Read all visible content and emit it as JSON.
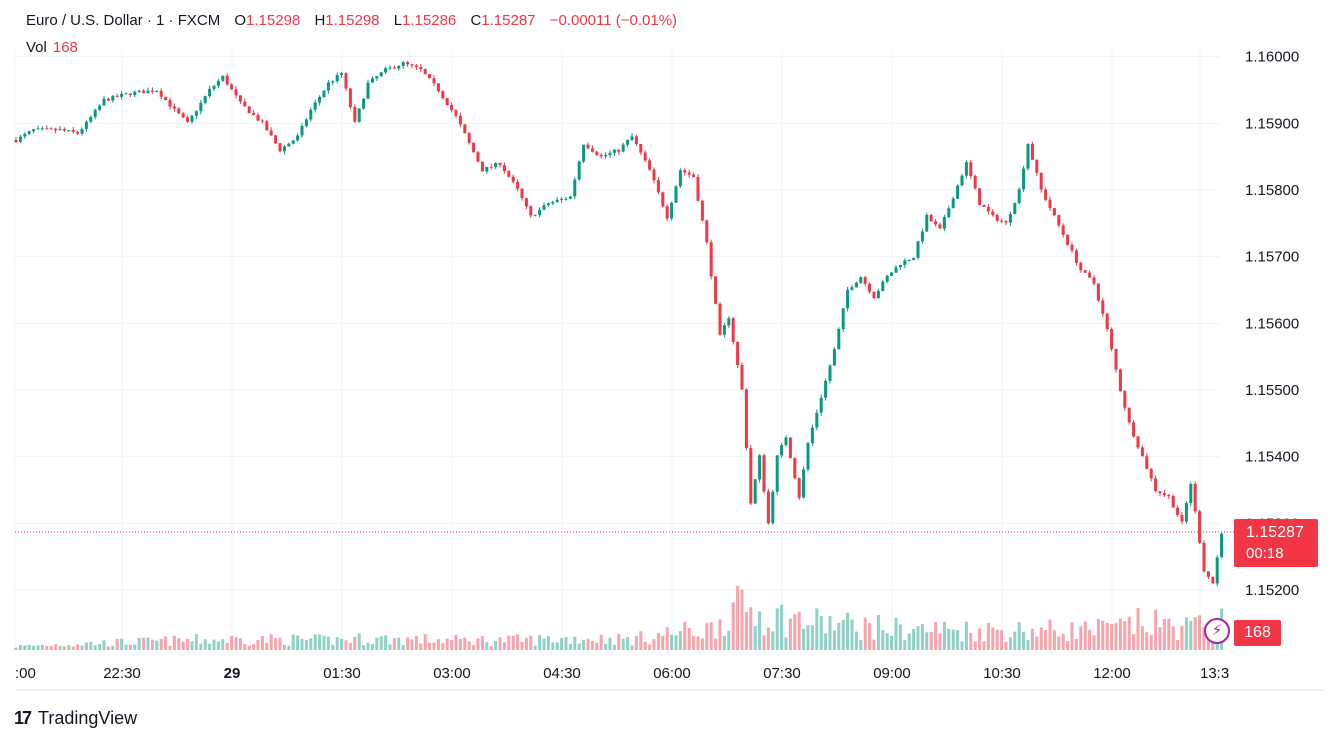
{
  "legend": {
    "symbol": "Euro / U.S. Dollar · 1 · FXCM",
    "o_label": "O",
    "o_value": "1.15298",
    "h_label": "H",
    "h_value": "1.15298",
    "l_label": "L",
    "l_value": "1.15286",
    "c_label": "C",
    "c_value": "1.15287",
    "change": "−0.00011 (−0.01%)"
  },
  "volume": {
    "label": "Vol",
    "value": "168"
  },
  "last_price": {
    "price": "1.15287",
    "countdown": "00:18"
  },
  "brand": {
    "name": "TradingView"
  },
  "colors": {
    "up": "#089981",
    "down": "#f23645",
    "grid": "#f0f3fa",
    "last_line": "#f23645"
  },
  "icons": {
    "bolt": "lightning-bolt-icon",
    "logo": "tradingview-logo-icon"
  },
  "chart_data": {
    "type": "candlestick",
    "title": "Euro / U.S. Dollar · 1 · FXCM",
    "y_ticks": [
      "1.16000",
      "1.15900",
      "1.15800",
      "1.15700",
      "1.15600",
      "1.15500",
      "1.15400",
      "1.15300",
      "1.15200"
    ],
    "x_ticks": [
      ":00",
      "22:30",
      "29",
      "01:30",
      "03:00",
      "04:30",
      "06:00",
      "07:30",
      "09:00",
      "10:30",
      "12:00",
      "13:3"
    ],
    "ylim": [
      1.15185,
      1.1601
    ],
    "last_close": 1.15287,
    "price_path": [
      [
        0,
        1.15875
      ],
      [
        4,
        1.1589
      ],
      [
        10,
        1.1589
      ],
      [
        14,
        1.15885
      ],
      [
        16,
        1.159
      ],
      [
        20,
        1.15935
      ],
      [
        26,
        1.15945
      ],
      [
        32,
        1.1595
      ],
      [
        36,
        1.1592
      ],
      [
        39,
        1.159
      ],
      [
        44,
        1.1595
      ],
      [
        47,
        1.1597
      ],
      [
        51,
        1.1593
      ],
      [
        56,
        1.159
      ],
      [
        60,
        1.1586
      ],
      [
        64,
        1.1588
      ],
      [
        67,
        1.1592
      ],
      [
        71,
        1.1596
      ],
      [
        74,
        1.15975
      ],
      [
        77,
        1.159
      ],
      [
        80,
        1.1596
      ],
      [
        84,
        1.1598
      ],
      [
        88,
        1.1599
      ],
      [
        92,
        1.1598
      ],
      [
        96,
        1.1595
      ],
      [
        100,
        1.1591
      ],
      [
        103,
        1.1587
      ],
      [
        106,
        1.1583
      ],
      [
        110,
        1.1584
      ],
      [
        114,
        1.158
      ],
      [
        117,
        1.1576
      ],
      [
        121,
        1.1578
      ],
      [
        126,
        1.1579
      ],
      [
        129,
        1.1587
      ],
      [
        133,
        1.1585
      ],
      [
        137,
        1.1586
      ],
      [
        140,
        1.1588
      ],
      [
        144,
        1.1583
      ],
      [
        148,
        1.1576
      ],
      [
        151,
        1.1583
      ],
      [
        154,
        1.1582
      ],
      [
        157,
        1.1572
      ],
      [
        160,
        1.1558
      ],
      [
        162,
        1.1561
      ],
      [
        165,
        1.155
      ],
      [
        167,
        1.1533
      ],
      [
        169,
        1.154
      ],
      [
        171,
        1.153
      ],
      [
        173,
        1.154
      ],
      [
        175,
        1.1543
      ],
      [
        178,
        1.1534
      ],
      [
        180,
        1.1542
      ],
      [
        183,
        1.1549
      ],
      [
        186,
        1.1556
      ],
      [
        189,
        1.1565
      ],
      [
        192,
        1.1567
      ],
      [
        195,
        1.1564
      ],
      [
        198,
        1.1567
      ],
      [
        201,
        1.1569
      ],
      [
        204,
        1.157
      ],
      [
        207,
        1.1576
      ],
      [
        210,
        1.1574
      ],
      [
        213,
        1.1579
      ],
      [
        216,
        1.1584
      ],
      [
        219,
        1.1578
      ],
      [
        222,
        1.1576
      ],
      [
        225,
        1.1575
      ],
      [
        228,
        1.158
      ],
      [
        230,
        1.1587
      ],
      [
        233,
        1.158
      ],
      [
        236,
        1.1576
      ],
      [
        239,
        1.1572
      ],
      [
        242,
        1.1568
      ],
      [
        245,
        1.1566
      ],
      [
        248,
        1.1559
      ],
      [
        251,
        1.155
      ],
      [
        253,
        1.1545
      ],
      [
        256,
        1.154
      ],
      [
        259,
        1.1535
      ],
      [
        262,
        1.1534
      ],
      [
        265,
        1.153
      ],
      [
        267,
        1.1536
      ],
      [
        270,
        1.1523
      ],
      [
        272,
        1.1521
      ],
      [
        274,
        1.15287
      ]
    ],
    "volume_ylim": [
      0,
      200
    ],
    "volume_profile": [
      [
        0,
        5
      ],
      [
        10,
        8
      ],
      [
        20,
        10
      ],
      [
        40,
        14
      ],
      [
        50,
        15
      ],
      [
        60,
        15
      ],
      [
        70,
        14
      ],
      [
        80,
        16
      ],
      [
        90,
        15
      ],
      [
        100,
        14
      ],
      [
        110,
        14
      ],
      [
        120,
        15
      ],
      [
        130,
        17
      ],
      [
        140,
        15
      ],
      [
        150,
        25
      ],
      [
        158,
        30
      ],
      [
        162,
        55
      ],
      [
        166,
        60
      ],
      [
        170,
        50
      ],
      [
        180,
        40
      ],
      [
        190,
        35
      ],
      [
        200,
        30
      ],
      [
        220,
        28
      ],
      [
        240,
        28
      ],
      [
        250,
        30
      ],
      [
        255,
        38
      ],
      [
        262,
        35
      ],
      [
        270,
        32
      ],
      [
        274,
        40
      ]
    ]
  }
}
